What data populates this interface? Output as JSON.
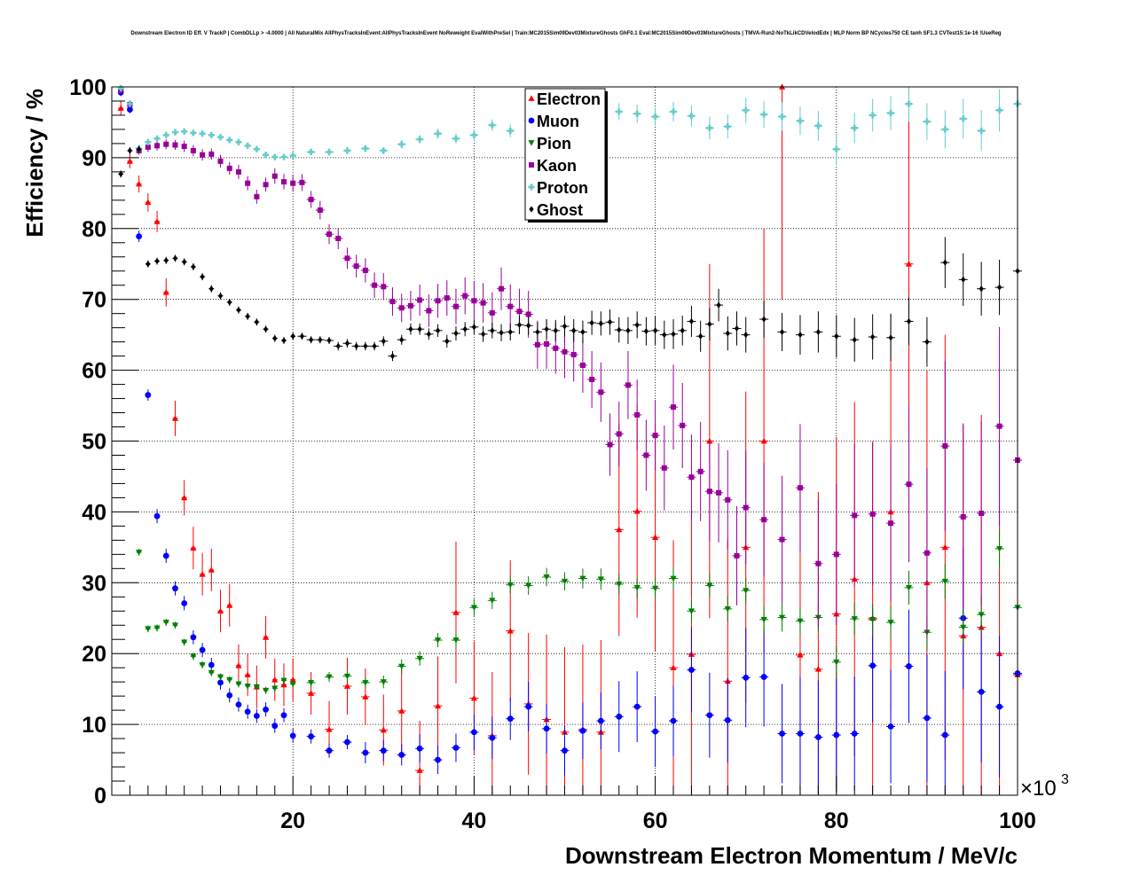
{
  "chart_data": {
    "type": "scatter",
    "title": "Downstream Electron ID Eff. V TrackP | CombDLLp > -4.0000 | All NaturalMix AllPhysTracksInEvent:AllPhysTracksInEvent NoReweight EvalWithPreSel | Train:MC2015Sim09Dev03MixtureGhosts GhF0.1 Eval:MC2015Sim09Dev03MixtureGhosts | TMVA-Run2-NoTkLikCDVelodEdx | MLP Norm BP NCycles750 CE tanh SF1.3 CVTest15:1e-16 !UseReg",
    "xlabel": "Downstream Electron Momentum / MeV/c",
    "ylabel": "Efficiency / %",
    "x_exponent_label": "×10",
    "x_exponent_power": "3",
    "xlim": [
      0,
      100
    ],
    "ylim": [
      0,
      100
    ],
    "xticks": [
      20,
      40,
      60,
      80,
      100
    ],
    "yticks": [
      0,
      10,
      20,
      30,
      40,
      50,
      60,
      70,
      80,
      90,
      100
    ],
    "grid": true,
    "legend_position": "top-center",
    "series": [
      {
        "name": "Electron",
        "color": "#ff0000",
        "marker": "triangle-up",
        "x": [
          1,
          2,
          3,
          4,
          5,
          6,
          7,
          8,
          9,
          10,
          11,
          12,
          13,
          14,
          15,
          16,
          17,
          18,
          19,
          20,
          22,
          24,
          26,
          28,
          30,
          32,
          34,
          36,
          38,
          40,
          42,
          44,
          46,
          48,
          50,
          52,
          54,
          56,
          58,
          60,
          62,
          64,
          66,
          68,
          70,
          72,
          74,
          76,
          78,
          80,
          82,
          84,
          86,
          88,
          90,
          92,
          94,
          96,
          98,
          100
        ],
        "y": [
          97,
          89.5,
          86.3,
          83.7,
          81,
          71,
          53.2,
          42,
          34.9,
          31.2,
          31.8,
          26,
          26.8,
          18.3,
          17,
          15.3,
          22.3,
          16.3,
          15.6,
          16.3,
          14.4,
          9.3,
          15.4,
          13.9,
          9.2,
          11.9,
          3.5,
          12.6,
          25.8,
          13.7,
          8.4,
          23.2,
          12.9,
          10.7,
          8.9,
          9.3,
          8.9,
          37.5,
          40.1,
          36.4,
          18,
          19.9,
          50,
          16.1,
          35,
          50,
          100,
          19.8,
          17.8,
          25.6,
          30.5,
          25,
          40,
          75,
          30,
          35,
          22.5,
          23.7,
          20,
          17
        ],
        "err": [
          1,
          1,
          1.2,
          1.3,
          1.5,
          2,
          2.5,
          2.5,
          3,
          3,
          3,
          3,
          3,
          3,
          3,
          3,
          3,
          3,
          3,
          3,
          3,
          4,
          4,
          4,
          5,
          6,
          7,
          7,
          10,
          8,
          9,
          10,
          10,
          12,
          12,
          12,
          13,
          15,
          15,
          16,
          18,
          20,
          25,
          20,
          22,
          30,
          30,
          25,
          25,
          25,
          25,
          25,
          28,
          25,
          30,
          30,
          30,
          30,
          30,
          30
        ]
      },
      {
        "name": "Muon",
        "color": "#0000ff",
        "marker": "circle",
        "x": [
          1,
          2,
          3,
          4,
          5,
          6,
          7,
          8,
          9,
          10,
          11,
          12,
          13,
          14,
          15,
          16,
          17,
          18,
          19,
          20,
          22,
          24,
          26,
          28,
          30,
          32,
          34,
          36,
          38,
          40,
          42,
          44,
          46,
          48,
          50,
          52,
          54,
          56,
          58,
          60,
          62,
          64,
          66,
          68,
          70,
          72,
          74,
          76,
          78,
          80,
          82,
          84,
          86,
          88,
          90,
          92,
          94,
          96,
          98,
          100
        ],
        "y": [
          99.2,
          96.8,
          78.9,
          56.5,
          39.4,
          33.8,
          29.2,
          27.1,
          22.3,
          20.5,
          18.4,
          15.9,
          14.1,
          12.8,
          11.8,
          11.2,
          12.1,
          9.8,
          11.3,
          8.4,
          8.3,
          6.3,
          7.5,
          6,
          6.3,
          5.7,
          6.6,
          5,
          6.7,
          8.9,
          8.1,
          10.8,
          12.5,
          9.4,
          6.3,
          9.1,
          10.5,
          11.1,
          12.5,
          9,
          10.5,
          17.7,
          11.3,
          10.6,
          16.6,
          16.7,
          8.7,
          8.7,
          8.2,
          8.5,
          8.7,
          18.3,
          9.7,
          18.2,
          10.9,
          8.5,
          25,
          14.6,
          12.5,
          17.2
        ],
        "err": [
          0.5,
          0.5,
          0.8,
          0.8,
          1,
          1,
          1,
          1,
          1,
          1,
          1,
          1,
          1,
          1,
          1,
          1,
          1,
          1,
          1,
          1,
          1,
          1,
          1,
          1.5,
          1.5,
          1.5,
          2,
          2,
          2,
          2.5,
          3,
          3,
          3.5,
          3.5,
          3.5,
          4,
          4,
          5,
          5,
          5,
          5,
          6,
          6,
          6,
          7,
          7,
          7,
          8,
          8,
          8,
          8,
          8,
          8,
          8,
          9,
          9,
          10,
          10,
          10,
          10
        ]
      },
      {
        "name": "Pion",
        "color": "#008000",
        "marker": "triangle-down",
        "x": [
          3,
          4,
          5,
          6,
          7,
          8,
          9,
          10,
          11,
          12,
          13,
          14,
          15,
          16,
          17,
          18,
          19,
          20,
          22,
          24,
          26,
          28,
          30,
          32,
          34,
          36,
          38,
          40,
          42,
          44,
          46,
          48,
          50,
          52,
          54,
          56,
          58,
          60,
          62,
          64,
          66,
          68,
          70,
          72,
          74,
          76,
          78,
          80,
          82,
          84,
          86,
          88,
          90,
          92,
          94,
          96,
          98,
          100
        ],
        "y": [
          34.3,
          23.5,
          23.6,
          24.4,
          24,
          21.6,
          19.6,
          18.4,
          17.3,
          16.7,
          16.3,
          15.7,
          15.4,
          15.3,
          14.8,
          15.1,
          16.2,
          15.7,
          15.9,
          16.7,
          16.8,
          15.9,
          16,
          18.2,
          19.3,
          21.9,
          21.9,
          26.5,
          27.5,
          29.7,
          29.6,
          30.8,
          30.2,
          30.6,
          30.5,
          29.8,
          29.3,
          29.2,
          30.6,
          26,
          29.6,
          26.3,
          28.9,
          24.8,
          25.1,
          24.6,
          25.1,
          18.8,
          24.9,
          24.8,
          24.4,
          29.3,
          23,
          30.2,
          23.7,
          25.5,
          34.8,
          26.5
        ],
        "err": [
          0.5,
          0.5,
          0.5,
          0.5,
          0.5,
          0.5,
          0.5,
          0.5,
          0.5,
          0.5,
          0.5,
          0.5,
          0.5,
          0.5,
          0.5,
          0.5,
          0.5,
          0.5,
          0.6,
          0.7,
          0.8,
          0.8,
          0.9,
          1,
          1,
          1,
          1.2,
          1.2,
          1.2,
          1.2,
          1.3,
          1.3,
          1.3,
          1.4,
          1.5,
          1.5,
          1.5,
          1.5,
          1.6,
          1.6,
          1.7,
          1.8,
          1.8,
          1.9,
          2,
          2,
          2,
          2.2,
          2.2,
          2.2,
          2.3,
          2.4,
          2.5,
          2.5,
          2.5,
          2.6,
          2.7,
          2.8
        ]
      },
      {
        "name": "Kaon",
        "color": "#990099",
        "marker": "square",
        "x": [
          1,
          2,
          3,
          4,
          5,
          6,
          7,
          8,
          9,
          10,
          11,
          12,
          13,
          14,
          15,
          16,
          17,
          18,
          19,
          20,
          21,
          22,
          23,
          24,
          25,
          26,
          27,
          28,
          29,
          30,
          31,
          32,
          33,
          34,
          35,
          36,
          37,
          38,
          39,
          40,
          41,
          42,
          43,
          44,
          45,
          46,
          47,
          48,
          49,
          50,
          51,
          52,
          53,
          54,
          55,
          56,
          57,
          58,
          59,
          60,
          61,
          62,
          63,
          64,
          65,
          66,
          67,
          68,
          69,
          70,
          72,
          74,
          76,
          78,
          80,
          82,
          84,
          86,
          88,
          90,
          92,
          94,
          96,
          98,
          100
        ],
        "y": [
          99.5,
          97.5,
          91,
          91.5,
          91.7,
          91.9,
          91.8,
          91.6,
          91,
          90.4,
          90.5,
          89.5,
          88.5,
          88,
          86.4,
          84.5,
          86.2,
          87.4,
          86.6,
          86.4,
          86.5,
          84.1,
          82.6,
          79.2,
          78.6,
          75.8,
          74.7,
          74.1,
          72,
          71.8,
          69.7,
          68.8,
          69.1,
          69.9,
          68.4,
          69.8,
          70.2,
          69,
          70.5,
          69.8,
          69.5,
          68.1,
          71.5,
          69,
          68.3,
          67.9,
          63.6,
          63.7,
          63.1,
          62.6,
          62.2,
          60.7,
          58.7,
          56.9,
          49.5,
          51,
          57.9,
          53.7,
          48,
          50.8,
          46.2,
          54.8,
          52.2,
          44.9,
          45.7,
          42.9,
          42.7,
          41.7,
          33.8,
          40.6,
          38.9,
          36.1,
          43.4,
          32.7,
          34,
          39.5,
          39.7,
          38.4,
          43.9,
          34.2,
          49.3,
          39.3,
          39.8,
          52.1,
          47.3
        ],
        "err": [
          0.5,
          0.6,
          0.6,
          0.7,
          0.7,
          0.7,
          0.7,
          0.8,
          0.8,
          0.8,
          0.8,
          0.9,
          0.9,
          1,
          1,
          1,
          1,
          1.1,
          1.1,
          1.2,
          1.2,
          1.2,
          1.3,
          1.4,
          1.5,
          1.5,
          1.6,
          1.7,
          1.8,
          1.9,
          2,
          2,
          2.1,
          2.2,
          2.3,
          2.4,
          2.5,
          2.5,
          2.6,
          2.7,
          2.8,
          2.9,
          3,
          3.1,
          3.2,
          3.3,
          3.4,
          3.5,
          3.6,
          3.7,
          3.8,
          3.9,
          4,
          4.2,
          4.4,
          4.6,
          4.8,
          5,
          5,
          5,
          6,
          6,
          6,
          6,
          7,
          7,
          7,
          7,
          7,
          8,
          8,
          9,
          9,
          9,
          10,
          10,
          10,
          11,
          11,
          12,
          12,
          13,
          13,
          14,
          15
        ]
      },
      {
        "name": "Proton",
        "color": "#66cccc",
        "marker": "cross",
        "x": [
          1,
          2,
          3,
          4,
          5,
          6,
          7,
          8,
          9,
          10,
          11,
          12,
          13,
          14,
          15,
          16,
          17,
          18,
          19,
          20,
          22,
          24,
          26,
          28,
          30,
          32,
          34,
          36,
          38,
          40,
          42,
          44,
          46,
          48,
          50,
          52,
          54,
          56,
          58,
          60,
          62,
          64,
          66,
          68,
          70,
          72,
          74,
          76,
          78,
          80,
          82,
          84,
          86,
          88,
          90,
          92,
          94,
          96,
          98,
          100
        ],
        "y": [
          99.8,
          97.6,
          91.3,
          92.2,
          92.7,
          93.2,
          93.6,
          93.7,
          93.5,
          93.4,
          93.2,
          92.9,
          92.5,
          92.2,
          91.7,
          91.2,
          90.4,
          90.1,
          90.1,
          90.3,
          90.8,
          90.8,
          91,
          91.3,
          91,
          91.9,
          92.6,
          93.4,
          92.7,
          93.2,
          94.6,
          93.8,
          95.3,
          95.9,
          95.5,
          95.9,
          95.2,
          96.5,
          96.2,
          95.8,
          96.5,
          95.9,
          94.2,
          94.4,
          96.7,
          96.1,
          95.8,
          95.2,
          94.5,
          91.2,
          94.2,
          96,
          96.3,
          97.6,
          95.1,
          94,
          95.5,
          93.8,
          96.7,
          97.6
        ],
        "err": [
          0.2,
          0.3,
          0.3,
          0.3,
          0.3,
          0.3,
          0.3,
          0.3,
          0.3,
          0.3,
          0.3,
          0.3,
          0.3,
          0.3,
          0.4,
          0.4,
          0.4,
          0.4,
          0.4,
          0.4,
          0.4,
          0.5,
          0.5,
          0.5,
          0.5,
          0.6,
          0.6,
          0.7,
          0.7,
          0.8,
          0.8,
          0.9,
          1,
          1,
          1,
          1.1,
          1.2,
          1.2,
          1.3,
          1.3,
          1.4,
          1.5,
          1.6,
          1.7,
          1.8,
          1.9,
          2,
          2,
          2.1,
          2.2,
          2.2,
          2.3,
          2.4,
          2.5,
          2.6,
          2.7,
          2.8,
          2.9,
          3,
          3
        ]
      },
      {
        "name": "Ghost",
        "color": "#000000",
        "marker": "diamond",
        "x": [
          1,
          2,
          3,
          4,
          5,
          6,
          7,
          8,
          9,
          10,
          11,
          12,
          13,
          14,
          15,
          16,
          17,
          18,
          19,
          20,
          21,
          22,
          23,
          24,
          25,
          26,
          27,
          28,
          29,
          30,
          31,
          32,
          33,
          34,
          35,
          36,
          37,
          38,
          39,
          40,
          41,
          42,
          43,
          44,
          45,
          46,
          47,
          48,
          49,
          50,
          51,
          52,
          53,
          54,
          55,
          56,
          57,
          58,
          59,
          60,
          61,
          62,
          63,
          64,
          65,
          66,
          67,
          68,
          69,
          70,
          72,
          74,
          76,
          78,
          80,
          82,
          84,
          86,
          88,
          90,
          92,
          94,
          96,
          98,
          100
        ],
        "y": [
          87.7,
          91,
          91.2,
          75,
          75.4,
          75.5,
          75.8,
          75.3,
          74.6,
          73.2,
          71.5,
          70.5,
          69.6,
          68.5,
          67.6,
          66.8,
          65.8,
          64.5,
          64.2,
          64.8,
          64.8,
          64.3,
          64.3,
          64.2,
          63.4,
          63.8,
          63.4,
          63.4,
          63.4,
          64.1,
          62,
          64.3,
          65.8,
          65.8,
          65.1,
          65.6,
          64.1,
          65.2,
          65.8,
          66.1,
          65.1,
          65.6,
          65.3,
          65.4,
          66.4,
          66.3,
          65.4,
          65.8,
          65.6,
          66.2,
          65.6,
          65.4,
          66.7,
          66.6,
          66.8,
          65.7,
          65.6,
          66.4,
          65.5,
          65.6,
          65,
          65.1,
          65.6,
          66.9,
          64.8,
          66.5,
          69.2,
          65.2,
          65.9,
          65,
          67.2,
          65.4,
          65,
          65.4,
          64.8,
          64.3,
          64.7,
          64.6,
          66.9,
          64,
          75.2,
          72.8,
          71.5,
          71.7,
          74
        ],
        "err": [
          0.5,
          0.5,
          0.5,
          0.5,
          0.5,
          0.5,
          0.5,
          0.5,
          0.5,
          0.5,
          0.5,
          0.5,
          0.5,
          0.5,
          0.5,
          0.5,
          0.5,
          0.5,
          0.5,
          0.5,
          0.5,
          0.5,
          0.5,
          0.5,
          0.6,
          0.6,
          0.6,
          0.6,
          0.6,
          0.7,
          0.7,
          0.7,
          0.8,
          0.8,
          0.8,
          0.9,
          0.9,
          1,
          1,
          1,
          1.1,
          1.1,
          1.2,
          1.2,
          1.3,
          1.3,
          1.4,
          1.4,
          1.5,
          1.5,
          1.6,
          1.6,
          1.7,
          1.7,
          1.8,
          1.8,
          1.9,
          1.9,
          2,
          2,
          2,
          2.1,
          2.1,
          2.2,
          2.2,
          2.3,
          2.3,
          2.4,
          2.4,
          2.5,
          2.6,
          2.7,
          2.8,
          2.9,
          3,
          3.1,
          3.2,
          3.3,
          3.4,
          3.5,
          3.6,
          3.7,
          3.8,
          3.9,
          4
        ]
      }
    ]
  }
}
